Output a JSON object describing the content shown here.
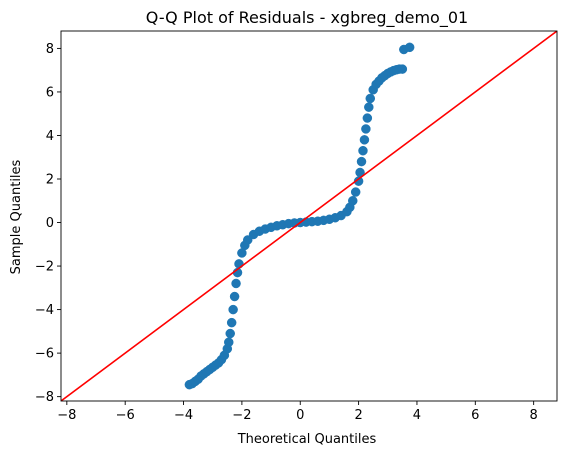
{
  "chart_data": {
    "type": "scatter",
    "title": "Q-Q Plot of Residuals - xgbreg_demo_01",
    "xlabel": "Theoretical Quantiles",
    "ylabel": "Sample Quantiles",
    "xlim": [
      -8.2,
      8.8
    ],
    "ylim": [
      -8.2,
      8.8
    ],
    "xticks": [
      -8,
      -6,
      -4,
      -2,
      0,
      2,
      4,
      6,
      8
    ],
    "yticks": [
      -8,
      -6,
      -4,
      -2,
      0,
      2,
      4,
      6,
      8
    ],
    "xtick_labels": [
      "−8",
      "−6",
      "−4",
      "−2",
      "0",
      "2",
      "4",
      "6",
      "8"
    ],
    "ytick_labels": [
      "−8",
      "−6",
      "−4",
      "−2",
      "0",
      "2",
      "4",
      "6",
      "8"
    ],
    "grid": false,
    "series": [
      {
        "kind": "points",
        "color": "#1f77b4",
        "points": [
          [
            -3.8,
            -7.45
          ],
          [
            -3.7,
            -7.4
          ],
          [
            -3.6,
            -7.3
          ],
          [
            -3.5,
            -7.2
          ],
          [
            -3.4,
            -7.05
          ],
          [
            -3.3,
            -6.95
          ],
          [
            -3.2,
            -6.85
          ],
          [
            -3.1,
            -6.75
          ],
          [
            -3.0,
            -6.65
          ],
          [
            -2.9,
            -6.55
          ],
          [
            -2.8,
            -6.45
          ],
          [
            -2.7,
            -6.3
          ],
          [
            -2.6,
            -6.1
          ],
          [
            -2.5,
            -5.8
          ],
          [
            -2.45,
            -5.5
          ],
          [
            -2.4,
            -5.1
          ],
          [
            -2.35,
            -4.6
          ],
          [
            -2.3,
            -4.0
          ],
          [
            -2.25,
            -3.4
          ],
          [
            -2.2,
            -2.8
          ],
          [
            -2.15,
            -2.3
          ],
          [
            -2.1,
            -1.9
          ],
          [
            -2.0,
            -1.4
          ],
          [
            -1.9,
            -1.05
          ],
          [
            -1.8,
            -0.8
          ],
          [
            -1.6,
            -0.55
          ],
          [
            -1.4,
            -0.4
          ],
          [
            -1.2,
            -0.3
          ],
          [
            -1.0,
            -0.22
          ],
          [
            -0.8,
            -0.15
          ],
          [
            -0.6,
            -0.1
          ],
          [
            -0.4,
            -0.05
          ],
          [
            -0.2,
            -0.02
          ],
          [
            0.0,
            0.0
          ],
          [
            0.2,
            0.02
          ],
          [
            0.4,
            0.04
          ],
          [
            0.6,
            0.06
          ],
          [
            0.8,
            0.1
          ],
          [
            1.0,
            0.15
          ],
          [
            1.2,
            0.22
          ],
          [
            1.4,
            0.32
          ],
          [
            1.6,
            0.5
          ],
          [
            1.7,
            0.7
          ],
          [
            1.8,
            1.0
          ],
          [
            1.9,
            1.4
          ],
          [
            2.0,
            1.9
          ],
          [
            2.05,
            2.3
          ],
          [
            2.1,
            2.8
          ],
          [
            2.15,
            3.3
          ],
          [
            2.2,
            3.8
          ],
          [
            2.25,
            4.3
          ],
          [
            2.3,
            4.8
          ],
          [
            2.35,
            5.3
          ],
          [
            2.4,
            5.7
          ],
          [
            2.5,
            6.1
          ],
          [
            2.6,
            6.35
          ],
          [
            2.7,
            6.5
          ],
          [
            2.8,
            6.65
          ],
          [
            2.9,
            6.75
          ],
          [
            3.0,
            6.85
          ],
          [
            3.1,
            6.92
          ],
          [
            3.2,
            6.98
          ],
          [
            3.3,
            7.02
          ],
          [
            3.4,
            7.05
          ],
          [
            3.5,
            7.05
          ],
          [
            3.55,
            7.95
          ],
          [
            3.75,
            8.05
          ]
        ]
      },
      {
        "kind": "reference-line",
        "color": "#ff0000",
        "from": [
          -8.2,
          -8.2
        ],
        "to": [
          8.8,
          8.8
        ]
      }
    ]
  }
}
